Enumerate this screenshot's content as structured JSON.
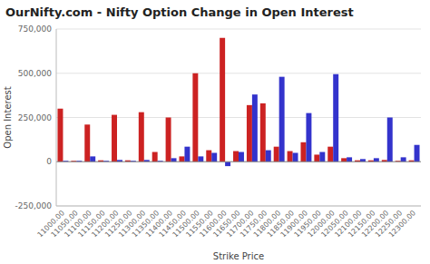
{
  "chart_data": {
    "type": "bar",
    "title": "OurNifty.com  -  Nifty Option Change in Open Interest",
    "xlabel": "Strike Price",
    "ylabel": "Open Interest",
    "categories": [
      "11000.00",
      "11050.00",
      "11100.00",
      "11150.00",
      "11200.00",
      "11250.00",
      "11300.00",
      "11350.00",
      "11400.00",
      "11450.00",
      "11500.00",
      "11550.00",
      "11600.00",
      "11650.00",
      "11700.00",
      "11750.00",
      "11800.00",
      "11850.00",
      "11900.00",
      "11950.00",
      "12000.00",
      "12050.00",
      "12100.00",
      "12150.00",
      "12200.00",
      "12250.00",
      "12300.00"
    ],
    "series": [
      {
        "color": "#cc2222",
        "values": [
          300000,
          5000,
          210000,
          8000,
          265000,
          8000,
          280000,
          55000,
          250000,
          30000,
          500000,
          65000,
          700000,
          60000,
          320000,
          330000,
          85000,
          60000,
          110000,
          40000,
          85000,
          20000,
          8000,
          8000,
          10000,
          5000,
          8000
        ]
      },
      {
        "color": "#3333cc",
        "values": [
          5000,
          5000,
          30000,
          5000,
          10000,
          5000,
          10000,
          5000,
          20000,
          85000,
          30000,
          50000,
          -25000,
          55000,
          380000,
          65000,
          480000,
          50000,
          275000,
          55000,
          495000,
          25000,
          15000,
          20000,
          250000,
          25000,
          95000
        ]
      }
    ],
    "ylim": [
      -250000,
      750000
    ],
    "yticks": [
      {
        "value": -250000,
        "label": "-250,000"
      },
      0,
      {
        "value": 250000,
        "label": "250,000"
      },
      {
        "value": 500000,
        "label": "500,000"
      },
      {
        "value": 750000,
        "label": "750,000"
      }
    ],
    "grid": true
  }
}
